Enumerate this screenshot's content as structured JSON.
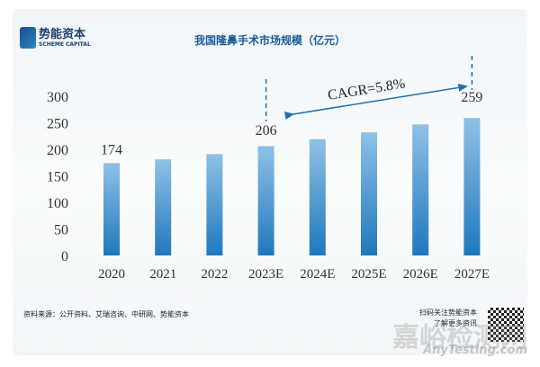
{
  "brand": {
    "cn": "势能资本",
    "en": "SCHEME CAPITAL"
  },
  "chart_data": {
    "type": "bar",
    "title": "我国隆鼻手术市场规模（亿元）",
    "categories": [
      "2020",
      "2021",
      "2022",
      "2023E",
      "2024E",
      "2025E",
      "2026E",
      "2027E"
    ],
    "values": [
      174,
      181,
      191,
      206,
      219,
      232,
      247,
      259
    ],
    "data_labels": {
      "0": "174",
      "3": "206",
      "7": "259"
    },
    "yticks": [
      "0",
      "50",
      "100",
      "150",
      "200",
      "250",
      "300"
    ],
    "ylim": [
      0,
      300
    ],
    "annotation": "CAGR=5.8%",
    "bar_color": "#2f86c6",
    "xlabel": "",
    "ylabel": ""
  },
  "footer": {
    "source": "资料来源：公开资料、艾瑞咨询、中研网、势能资本",
    "qr_line1": "扫码关注势能资本",
    "qr_line2": "了解更多资讯",
    "watermark": "嘉峪检测网",
    "watermark_url": "AnyTesting.com"
  }
}
